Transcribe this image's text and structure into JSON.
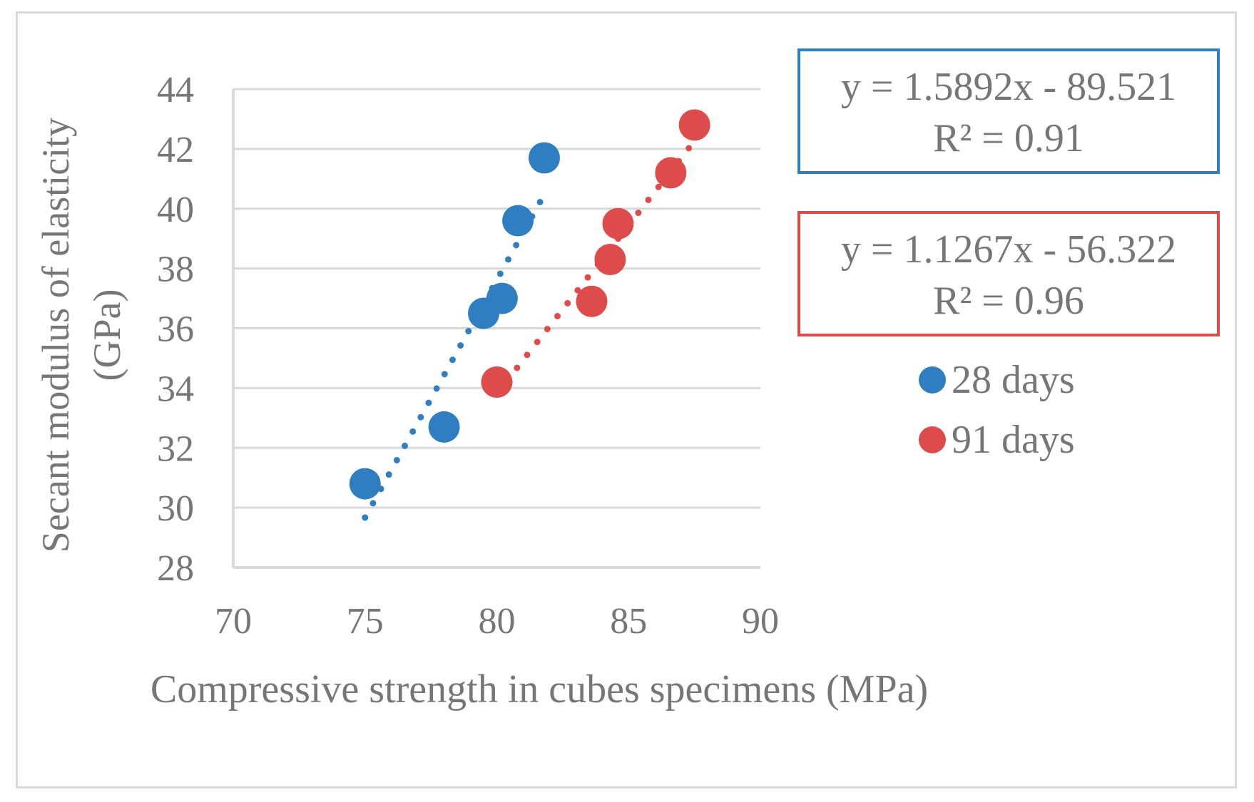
{
  "chart_data": {
    "type": "scatter",
    "title": "",
    "xlabel": "Compressive strength in cubes specimens (MPa)",
    "ylabel_lines": [
      "Secant modulus of elasticity",
      "(GPa)"
    ],
    "xlim": [
      70,
      90
    ],
    "ylim": [
      28,
      44
    ],
    "x_ticks": [
      "70",
      "75",
      "80",
      "85",
      "90"
    ],
    "y_ticks": [
      "28",
      "30",
      "32",
      "34",
      "36",
      "38",
      "40",
      "42",
      "44"
    ],
    "grid": "horizontal",
    "legend_position": "right",
    "series": [
      {
        "name": "28 days",
        "color": "#2e7ec1",
        "points": [
          [
            75.0,
            30.8
          ],
          [
            78.0,
            32.7
          ],
          [
            79.5,
            36.5
          ],
          [
            80.2,
            37.0
          ],
          [
            80.8,
            39.6
          ],
          [
            81.8,
            41.7
          ]
        ],
        "trendline": {
          "style": "dotted",
          "slope": 1.5892,
          "intercept": -89.521,
          "x_range": [
            75.0,
            81.8
          ]
        },
        "equation": "y = 1.5892x - 89.521",
        "r2": "R² = 0.91"
      },
      {
        "name": "91 days",
        "color": "#de4b4b",
        "points": [
          [
            80.0,
            34.2
          ],
          [
            83.6,
            36.9
          ],
          [
            84.3,
            38.3
          ],
          [
            84.6,
            39.5
          ],
          [
            86.6,
            41.2
          ],
          [
            87.5,
            42.8
          ]
        ],
        "trendline": {
          "style": "dotted",
          "slope": 1.1267,
          "intercept": -56.322,
          "x_range": [
            80.0,
            87.5
          ]
        },
        "equation": "y = 1.1267x - 56.322",
        "r2": "R² = 0.96"
      }
    ]
  }
}
